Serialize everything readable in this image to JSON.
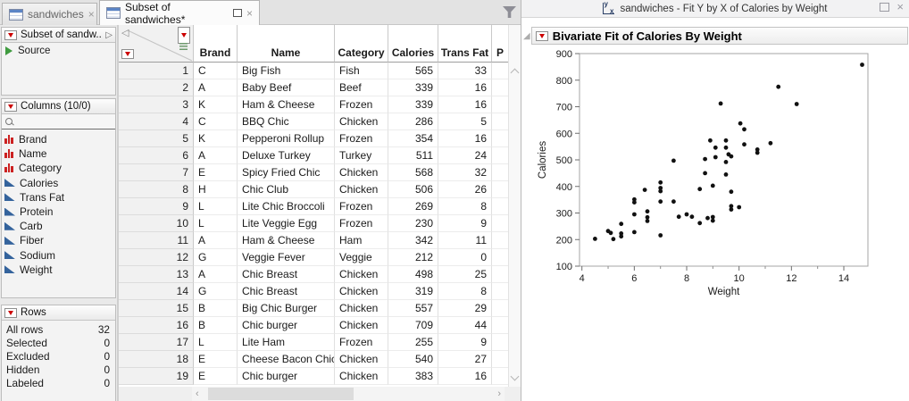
{
  "tabs": {
    "tab1": {
      "label": "sandwiches",
      "close_glyph": "×"
    },
    "tab2": {
      "label": "Subset of sandwiches*",
      "close_glyph": "×"
    }
  },
  "sidebar": {
    "table_panel": {
      "title": "Subset of sandw...",
      "expander_glyph": "▷",
      "source_label": "Source"
    },
    "columns_panel": {
      "title": "Columns (10/0)",
      "search_value": "",
      "items": [
        {
          "label": "Brand",
          "type": "nominal"
        },
        {
          "label": "Name",
          "type": "nominal"
        },
        {
          "label": "Category",
          "type": "nominal"
        },
        {
          "label": "Calories",
          "type": "continuous"
        },
        {
          "label": "Trans Fat",
          "type": "continuous"
        },
        {
          "label": "Protein",
          "type": "continuous"
        },
        {
          "label": "Carb",
          "type": "continuous"
        },
        {
          "label": "Fiber",
          "type": "continuous"
        },
        {
          "label": "Sodium",
          "type": "continuous"
        },
        {
          "label": "Weight",
          "type": "continuous"
        }
      ]
    },
    "rows_panel": {
      "title": "Rows",
      "stats": [
        {
          "label": "All rows",
          "value": "32"
        },
        {
          "label": "Selected",
          "value": "0"
        },
        {
          "label": "Excluded",
          "value": "0"
        },
        {
          "label": "Hidden",
          "value": "0"
        },
        {
          "label": "Labeled",
          "value": "0"
        }
      ]
    }
  },
  "table": {
    "headers": [
      "Brand",
      "Name",
      "Category",
      "Calories",
      "Trans Fat",
      "P"
    ],
    "rows": [
      [
        "1",
        "C",
        "Big Fish",
        "Fish",
        "565",
        "33"
      ],
      [
        "2",
        "A",
        "Baby Beef",
        "Beef",
        "339",
        "16"
      ],
      [
        "3",
        "K",
        "Ham & Cheese",
        "Frozen",
        "339",
        "16"
      ],
      [
        "4",
        "C",
        "BBQ Chic",
        "Chicken",
        "286",
        "5"
      ],
      [
        "5",
        "K",
        "Pepperoni Rollup",
        "Frozen",
        "354",
        "16"
      ],
      [
        "6",
        "A",
        "Deluxe Turkey",
        "Turkey",
        "511",
        "24"
      ],
      [
        "7",
        "E",
        "Spicy Fried Chic",
        "Chicken",
        "568",
        "32"
      ],
      [
        "8",
        "H",
        "Chic Club",
        "Chicken",
        "506",
        "26"
      ],
      [
        "9",
        "L",
        "Lite Chic Broccoli",
        "Frozen",
        "269",
        "8"
      ],
      [
        "10",
        "L",
        "Lite Veggie Egg",
        "Frozen",
        "230",
        "9"
      ],
      [
        "11",
        "A",
        "Ham & Cheese",
        "Ham",
        "342",
        "11"
      ],
      [
        "12",
        "G",
        "Veggie Fever",
        "Veggie",
        "212",
        "0"
      ],
      [
        "13",
        "A",
        "Chic Breast",
        "Chicken",
        "498",
        "25"
      ],
      [
        "14",
        "G",
        "Chic Breast",
        "Chicken",
        "319",
        "8"
      ],
      [
        "15",
        "B",
        "Big Chic Burger",
        "Chicken",
        "557",
        "29"
      ],
      [
        "16",
        "B",
        "Chic burger",
        "Chicken",
        "709",
        "44"
      ],
      [
        "17",
        "L",
        "Lite Ham",
        "Frozen",
        "255",
        "9"
      ],
      [
        "18",
        "E",
        "Cheese Bacon Chic",
        "Chicken",
        "540",
        "27"
      ],
      [
        "19",
        "E",
        "Chic burger",
        "Chicken",
        "383",
        "16"
      ]
    ]
  },
  "report": {
    "window_title": "sandwiches - Fit Y by X of Calories by Weight",
    "panel_title": "Bivariate Fit of Calories By Weight"
  },
  "chart_data": {
    "type": "scatter",
    "title": "Bivariate Fit of Calories By Weight",
    "xlabel": "Weight",
    "ylabel": "Calories",
    "xlim": [
      3.9,
      15
    ],
    "ylim": [
      100,
      900
    ],
    "x_ticks_major": [
      4,
      6,
      8,
      10,
      12,
      14
    ],
    "x_ticks_minor": [
      5,
      7,
      9,
      11,
      13,
      15
    ],
    "y_ticks": [
      100,
      200,
      300,
      400,
      500,
      600,
      700,
      800,
      900
    ],
    "grid": false,
    "legend": "none",
    "points": [
      [
        4.5,
        203
      ],
      [
        5.0,
        232
      ],
      [
        5.1,
        225
      ],
      [
        5.2,
        202
      ],
      [
        5.5,
        259
      ],
      [
        5.5,
        223
      ],
      [
        5.5,
        212
      ],
      [
        6.0,
        351
      ],
      [
        6.0,
        340
      ],
      [
        6.0,
        295
      ],
      [
        6.0,
        228
      ],
      [
        6.4,
        387
      ],
      [
        6.5,
        306
      ],
      [
        6.5,
        284
      ],
      [
        6.5,
        270
      ],
      [
        7.0,
        415
      ],
      [
        7.0,
        394
      ],
      [
        7.0,
        382
      ],
      [
        7.0,
        343
      ],
      [
        7.0,
        216
      ],
      [
        7.5,
        497
      ],
      [
        7.5,
        343
      ],
      [
        7.7,
        286
      ],
      [
        8.0,
        295
      ],
      [
        8.2,
        286
      ],
      [
        8.5,
        390
      ],
      [
        8.5,
        262
      ],
      [
        8.7,
        503
      ],
      [
        8.7,
        450
      ],
      [
        8.8,
        281
      ],
      [
        8.9,
        573
      ],
      [
        9.0,
        403
      ],
      [
        9.0,
        285
      ],
      [
        9.0,
        271
      ],
      [
        9.1,
        546
      ],
      [
        9.1,
        510
      ],
      [
        9.3,
        712
      ],
      [
        9.5,
        573
      ],
      [
        9.5,
        546
      ],
      [
        9.5,
        492
      ],
      [
        9.5,
        445
      ],
      [
        9.6,
        521
      ],
      [
        9.7,
        513
      ],
      [
        9.7,
        380
      ],
      [
        9.7,
        326
      ],
      [
        9.7,
        313
      ],
      [
        10.0,
        322
      ],
      [
        10.05,
        637
      ],
      [
        10.2,
        615
      ],
      [
        10.2,
        558
      ],
      [
        10.7,
        539
      ],
      [
        10.7,
        527
      ],
      [
        11.2,
        563
      ],
      [
        11.5,
        775
      ],
      [
        12.2,
        710
      ],
      [
        14.7,
        858
      ]
    ]
  },
  "colors": {
    "accent_red": "#cc0000",
    "continuous_blue": "#34639c",
    "nominal_red": "#cc2222",
    "point_black": "#111111"
  }
}
